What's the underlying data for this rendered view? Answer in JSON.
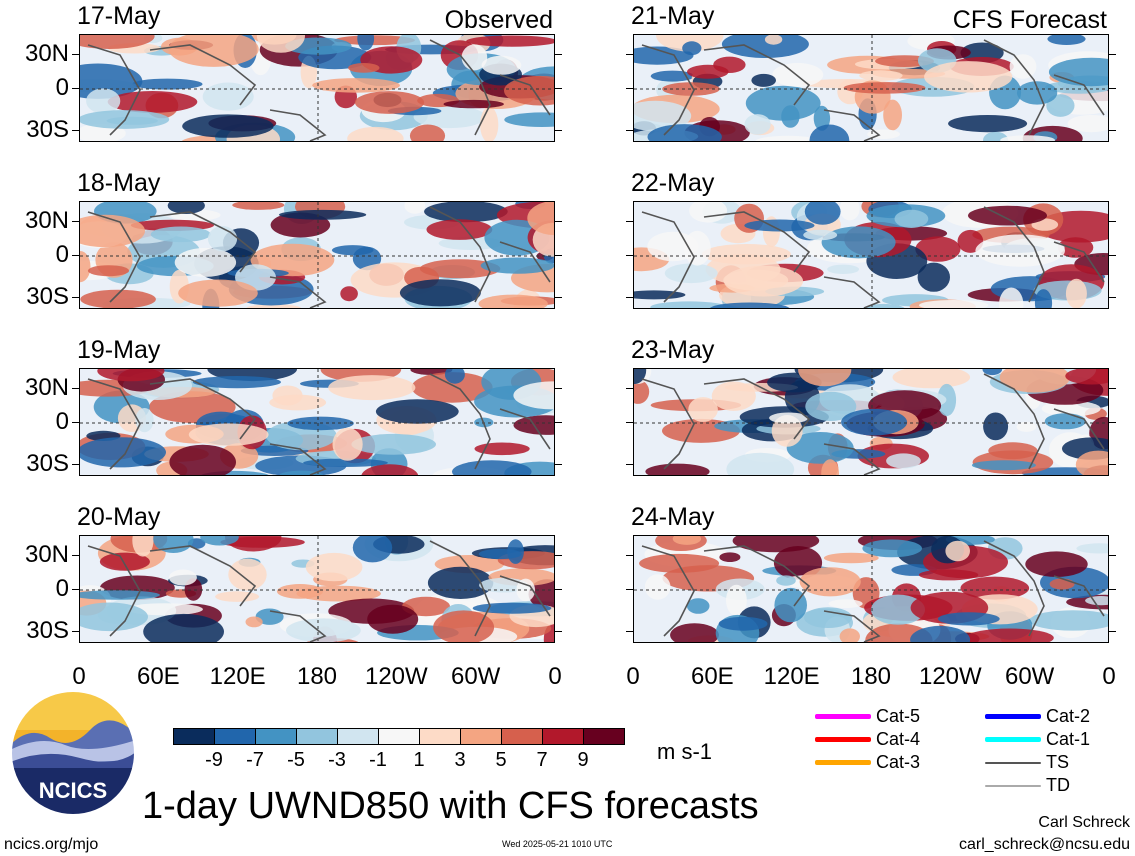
{
  "panels": [
    {
      "date": "17-May",
      "tag": "Observed",
      "col": 0,
      "row": 0
    },
    {
      "date": "18-May",
      "tag": "",
      "col": 0,
      "row": 1
    },
    {
      "date": "19-May",
      "tag": "",
      "col": 0,
      "row": 2
    },
    {
      "date": "20-May",
      "tag": "",
      "col": 0,
      "row": 3
    },
    {
      "date": "21-May",
      "tag": "CFS Forecast",
      "col": 1,
      "row": 0
    },
    {
      "date": "22-May",
      "tag": "",
      "col": 1,
      "row": 1
    },
    {
      "date": "23-May",
      "tag": "",
      "col": 1,
      "row": 2
    },
    {
      "date": "24-May",
      "tag": "",
      "col": 1,
      "row": 3
    }
  ],
  "lat_ticks": [
    "30N",
    "0",
    "30S"
  ],
  "lon_ticks": [
    "0",
    "60E",
    "120E",
    "180",
    "120W",
    "60W",
    "0"
  ],
  "colorbar": {
    "colors": [
      "#0a2c5c",
      "#2166ac",
      "#4393c3",
      "#92c5de",
      "#d1e5f0",
      "#f7f7f7",
      "#fddbc7",
      "#f4a582",
      "#d6604d",
      "#b2182b",
      "#67001f"
    ],
    "labels": [
      "-9",
      "-7",
      "-5",
      "-3",
      "-1",
      "1",
      "3",
      "5",
      "7",
      "9"
    ],
    "units": "m s-1"
  },
  "legend": [
    {
      "label": "Cat-5",
      "color": "#ff00ff"
    },
    {
      "label": "Cat-4",
      "color": "#ff0000"
    },
    {
      "label": "Cat-3",
      "color": "#ffa500"
    },
    {
      "label": "Cat-2",
      "color": "#0000ff"
    },
    {
      "label": "Cat-1",
      "color": "#00ffff"
    },
    {
      "label": "TS",
      "color": "#555555"
    },
    {
      "label": "TD",
      "color": "#aaaaaa"
    }
  ],
  "logo_text": "NCICS",
  "title": "1-day UWND850 with CFS forecasts",
  "footer": {
    "site": "ncics.org/mjo",
    "timestamp": "Wed 2025-05-21 1010 UTC",
    "author": "Carl Schreck",
    "email": "carl_schreck@ncsu.edu"
  }
}
